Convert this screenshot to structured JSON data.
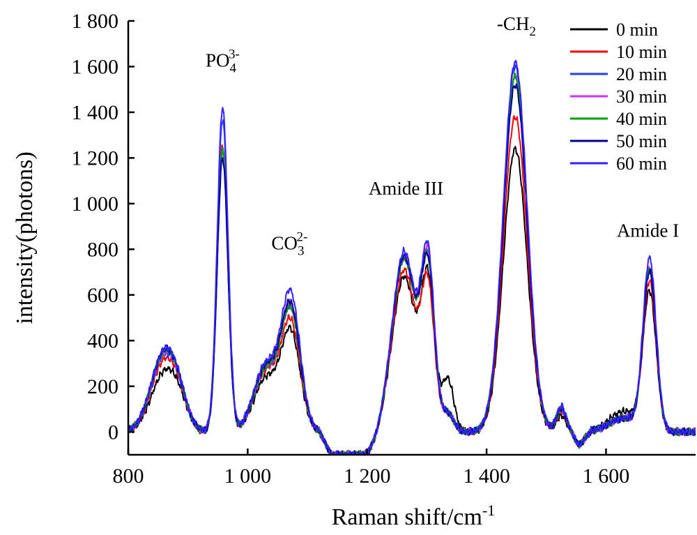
{
  "chart_data": {
    "type": "line",
    "title": "",
    "xlabel": "Raman shift/cm",
    "xlabel_sup": "-1",
    "ylabel": "intensity(photons)",
    "xlim": [
      800,
      1750
    ],
    "ylim": [
      -100,
      1800
    ],
    "x_ticks": [
      800,
      1000,
      1200,
      1400,
      1600
    ],
    "x_tick_labels": [
      "800",
      "1 000",
      "1 200",
      "1 400",
      "1 600"
    ],
    "y_ticks": [
      0,
      200,
      400,
      600,
      800,
      1000,
      1200,
      1400,
      1600,
      1800
    ],
    "y_tick_labels": [
      "0",
      "200",
      "400",
      "600",
      "800",
      "1 000",
      "1 200",
      "1 400",
      "1 600",
      "1 800"
    ],
    "grid": false,
    "legend_position": "top-right",
    "annotations": [
      {
        "base": "PO",
        "sub": "4",
        "sup": "3-",
        "x": 958,
        "y": 1600
      },
      {
        "base": "CO",
        "sub": "3",
        "sup": "2-",
        "x": 1070,
        "y": 800
      },
      {
        "base": "-CH",
        "sub": "2",
        "sup": "",
        "x": 1450,
        "y": 1760
      },
      {
        "base": "Amide III",
        "sub": "",
        "sup": "",
        "x": 1265,
        "y": 1040
      },
      {
        "base": "Amide  I",
        "sub": "",
        "sup": "",
        "x": 1670,
        "y": 855
      }
    ],
    "peaks": [
      {
        "center": 860,
        "width": 22,
        "values": [
          250,
          300,
          320,
          330,
          335,
          340,
          345
        ]
      },
      {
        "center": 885,
        "width": 15,
        "values": [
          80,
          80,
          80,
          80,
          80,
          80,
          80
        ]
      },
      {
        "center": 958,
        "width": 9,
        "values": [
          1230,
          1250,
          1370,
          1240,
          1230,
          1200,
          1420
        ]
      },
      {
        "center": 1030,
        "width": 20,
        "values": [
          230,
          260,
          270,
          270,
          270,
          280,
          290
        ]
      },
      {
        "center": 1072,
        "width": 16,
        "values": [
          430,
          470,
          520,
          540,
          520,
          540,
          590
        ]
      },
      {
        "center": 1262,
        "width": 20,
        "values": [
          680,
          710,
          760,
          770,
          760,
          770,
          790
        ]
      },
      {
        "center": 1302,
        "width": 11,
        "values": [
          620,
          590,
          690,
          700,
          670,
          670,
          720
        ]
      },
      {
        "center": 1335,
        "width": 10,
        "values": [
          230,
          80,
          80,
          80,
          80,
          80,
          80
        ]
      },
      {
        "center": 1448,
        "width": 20,
        "values": [
          1240,
          1380,
          1600,
          1560,
          1560,
          1520,
          1620
        ]
      },
      {
        "center": 1525,
        "width": 8,
        "values": [
          70,
          90,
          110,
          100,
          100,
          100,
          110
        ]
      },
      {
        "center": 1630,
        "width": 25,
        "values": [
          90,
          60,
          60,
          60,
          60,
          60,
          60
        ]
      },
      {
        "center": 1673,
        "width": 11,
        "values": [
          600,
          650,
          700,
          700,
          700,
          690,
          750
        ]
      }
    ],
    "series": [
      {
        "name": "0 min",
        "color": "#000000"
      },
      {
        "name": "10 min",
        "color": "#ff0000"
      },
      {
        "name": "20 min",
        "color": "#1f3fff"
      },
      {
        "name": "30 min",
        "color": "#cc33ff"
      },
      {
        "name": "40 min",
        "color": "#00a000"
      },
      {
        "name": "50 min",
        "color": "#00008b"
      },
      {
        "name": "60 min",
        "color": "#3322ff"
      }
    ]
  }
}
